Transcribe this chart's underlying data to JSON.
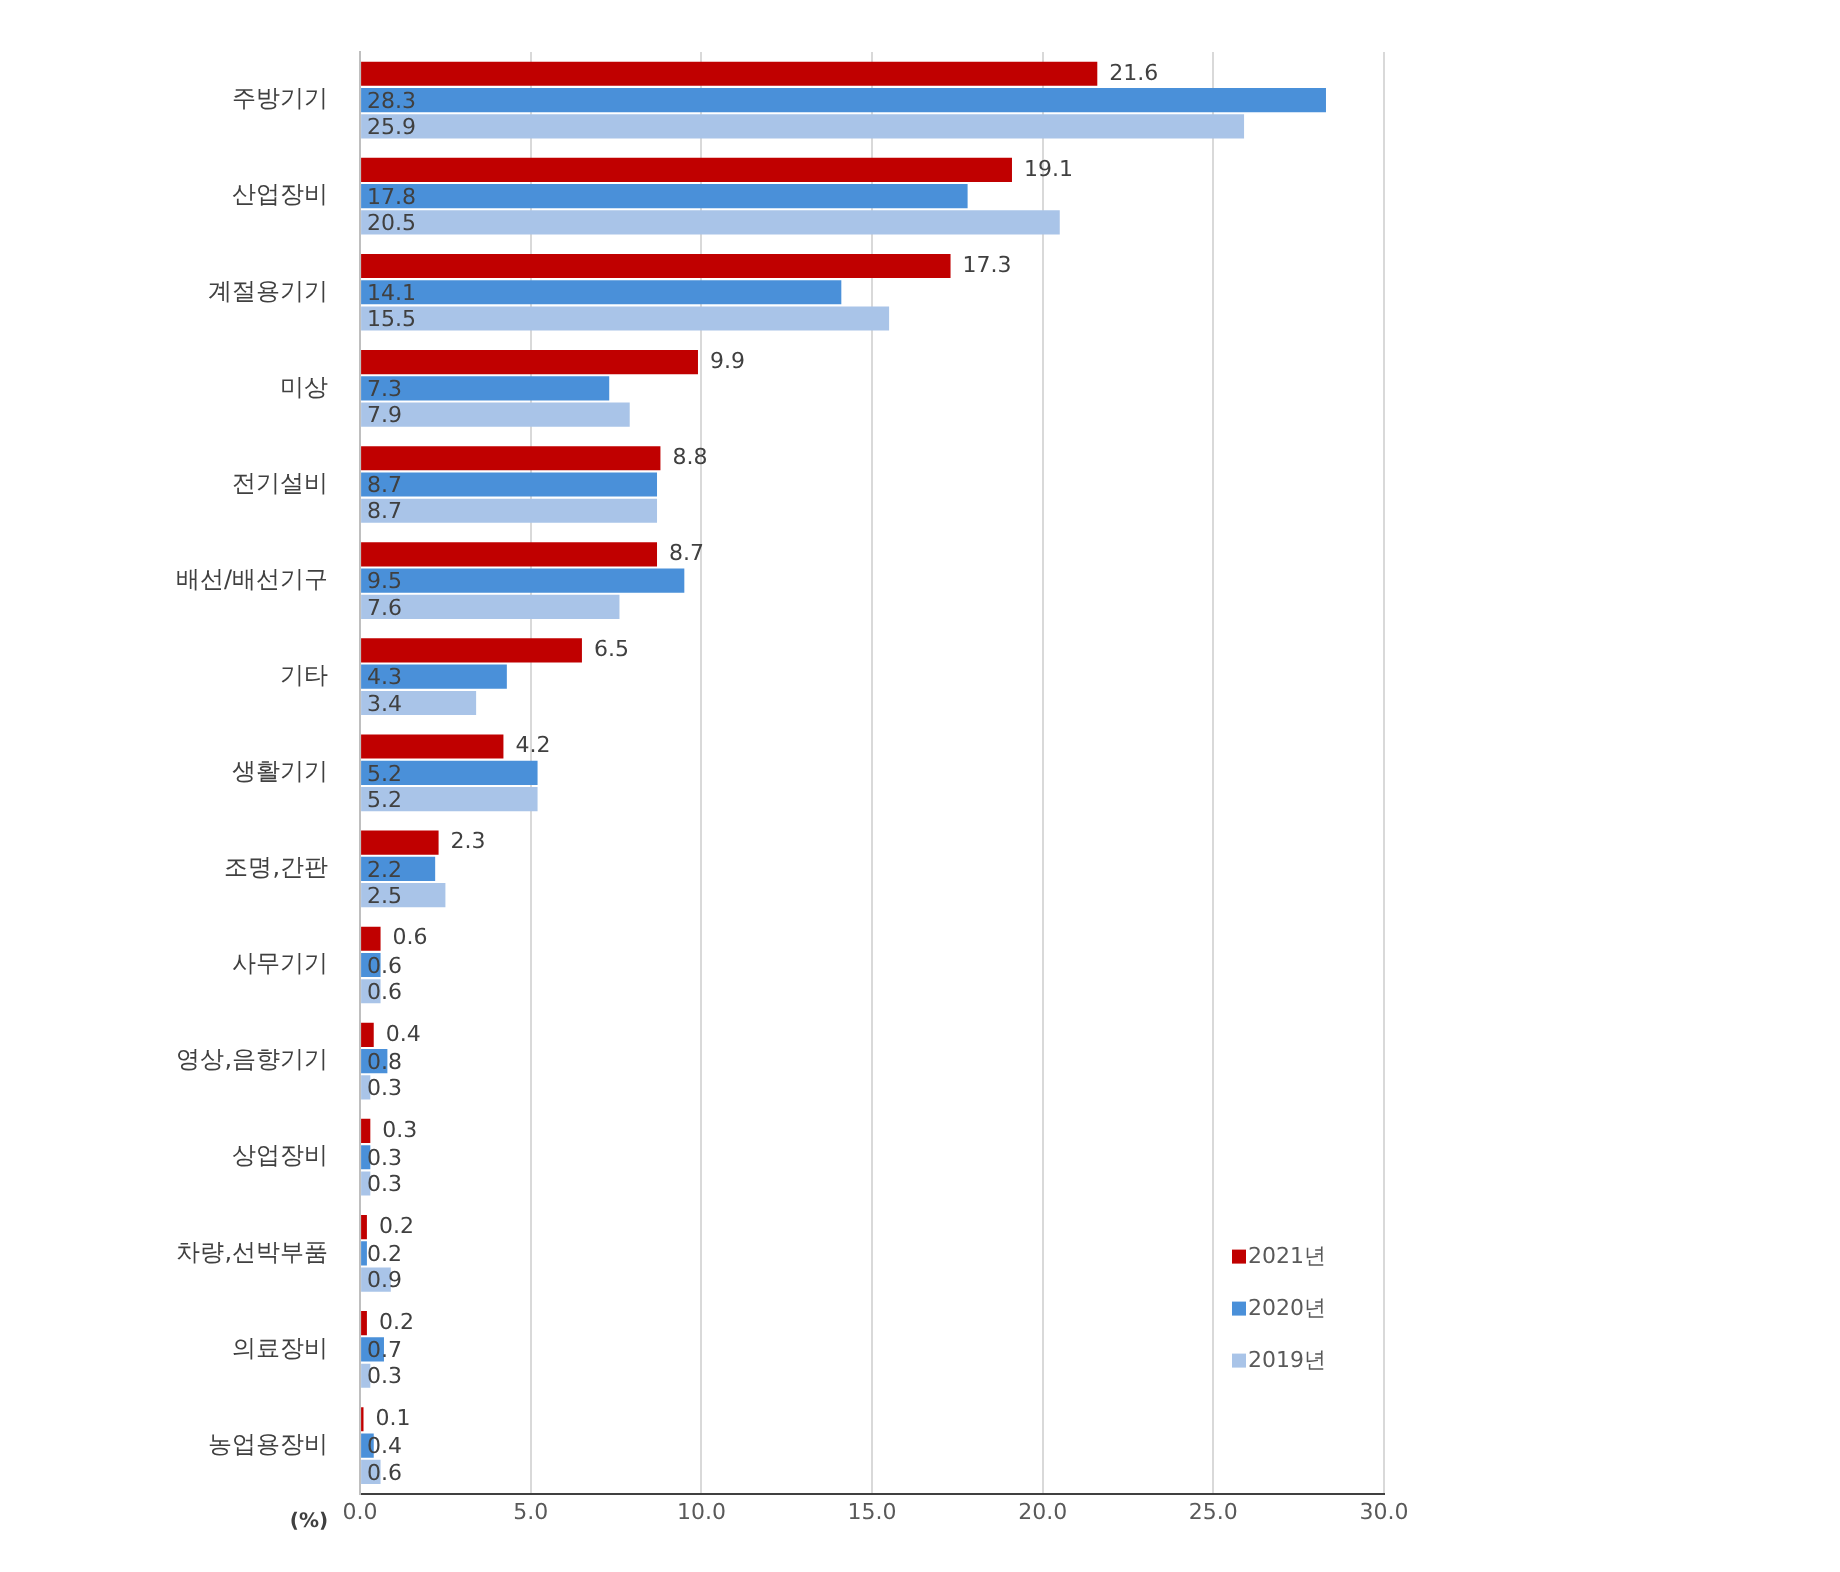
{
  "chart_data": {
    "type": "bar",
    "orientation": "horizontal",
    "xlabel": "(%)",
    "categories": [
      "주방기기",
      "산업장비",
      "계절용기기",
      "미상",
      "전기설비",
      "배선/배선기구",
      "기타",
      "생활기기",
      "조명,간판",
      "사무기기",
      "영상,음향기기",
      "상업장비",
      "차량,선박부품",
      "의료장비",
      "농업용장비"
    ],
    "series": [
      {
        "name": "2021년",
        "color": "#c00000",
        "values": [
          21.6,
          19.1,
          17.3,
          9.9,
          8.8,
          8.7,
          6.5,
          4.2,
          2.3,
          0.6,
          0.4,
          0.3,
          0.2,
          0.2,
          0.1
        ]
      },
      {
        "name": "2020년",
        "color": "#4a90d9",
        "values": [
          28.3,
          17.8,
          14.1,
          7.3,
          8.7,
          9.5,
          4.3,
          5.2,
          2.2,
          0.6,
          0.8,
          0.3,
          0.2,
          0.7,
          0.4
        ]
      },
      {
        "name": "2019년",
        "color": "#a9c4e8",
        "values": [
          25.9,
          20.5,
          15.5,
          7.9,
          8.7,
          7.6,
          3.4,
          5.2,
          2.5,
          0.6,
          0.3,
          0.3,
          0.9,
          0.3,
          0.6
        ]
      }
    ],
    "xlim": [
      0,
      30
    ],
    "xticks": [
      {
        "value": 0,
        "label": "0.0"
      },
      {
        "value": 5,
        "label": "5.0"
      },
      {
        "value": 10,
        "label": "10.0"
      },
      {
        "value": 15,
        "label": "15.0"
      },
      {
        "value": 20,
        "label": "20.0"
      },
      {
        "value": 25,
        "label": "25.0"
      },
      {
        "value": 30,
        "label": "30.0"
      }
    ],
    "grid": "x",
    "legend": "bottom right",
    "data_labels": true
  }
}
